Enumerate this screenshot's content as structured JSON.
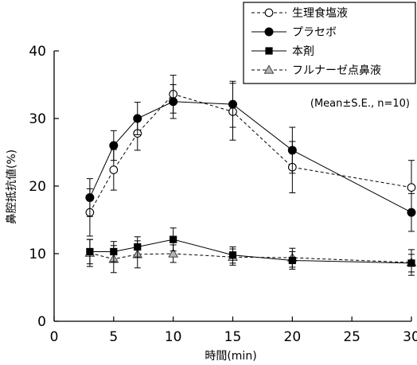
{
  "chart_data": {
    "type": "line",
    "xlabel": "時間(min)",
    "ylabel": "鼻腔抵抗値(%)",
    "xlim": [
      0,
      30
    ],
    "ylim": [
      0,
      40
    ],
    "xticks": [
      0,
      5,
      10,
      15,
      20,
      25,
      30
    ],
    "yticks": [
      0,
      10,
      20,
      30,
      40
    ],
    "annotation": "(Mean±S.E., n=10)",
    "legend_position": "top-right",
    "x": [
      3,
      5,
      7,
      10,
      15,
      20,
      30
    ],
    "series": [
      {
        "name": "生理食塩液",
        "marker": "circle-open",
        "line": "dashed",
        "values": [
          16.1,
          22.4,
          27.8,
          33.6,
          31.0,
          22.8,
          19.8
        ],
        "errors": [
          3.5,
          3.0,
          2.5,
          2.8,
          4.2,
          3.8,
          4.0
        ]
      },
      {
        "name": "プラセボ",
        "marker": "circle-filled",
        "line": "solid",
        "values": [
          18.3,
          26.0,
          30.0,
          32.5,
          32.1,
          25.3,
          16.1
        ],
        "errors": [
          2.8,
          2.2,
          2.4,
          2.5,
          3.4,
          3.4,
          2.8
        ]
      },
      {
        "name": "本剤",
        "marker": "square-filled",
        "line": "solid",
        "values": [
          10.3,
          10.3,
          11.0,
          12.1,
          9.8,
          9.0,
          8.6
        ],
        "errors": [
          1.8,
          1.5,
          1.5,
          1.7,
          1.2,
          1.3,
          1.3
        ]
      },
      {
        "name": "フルナーゼ点鼻液",
        "marker": "triangle-gray",
        "line": "dashed",
        "values": [
          10.1,
          9.2,
          9.9,
          10.0,
          9.5,
          9.4,
          8.7
        ],
        "errors": [
          2.0,
          2.0,
          2.0,
          1.3,
          1.2,
          1.4,
          1.9
        ]
      }
    ]
  }
}
